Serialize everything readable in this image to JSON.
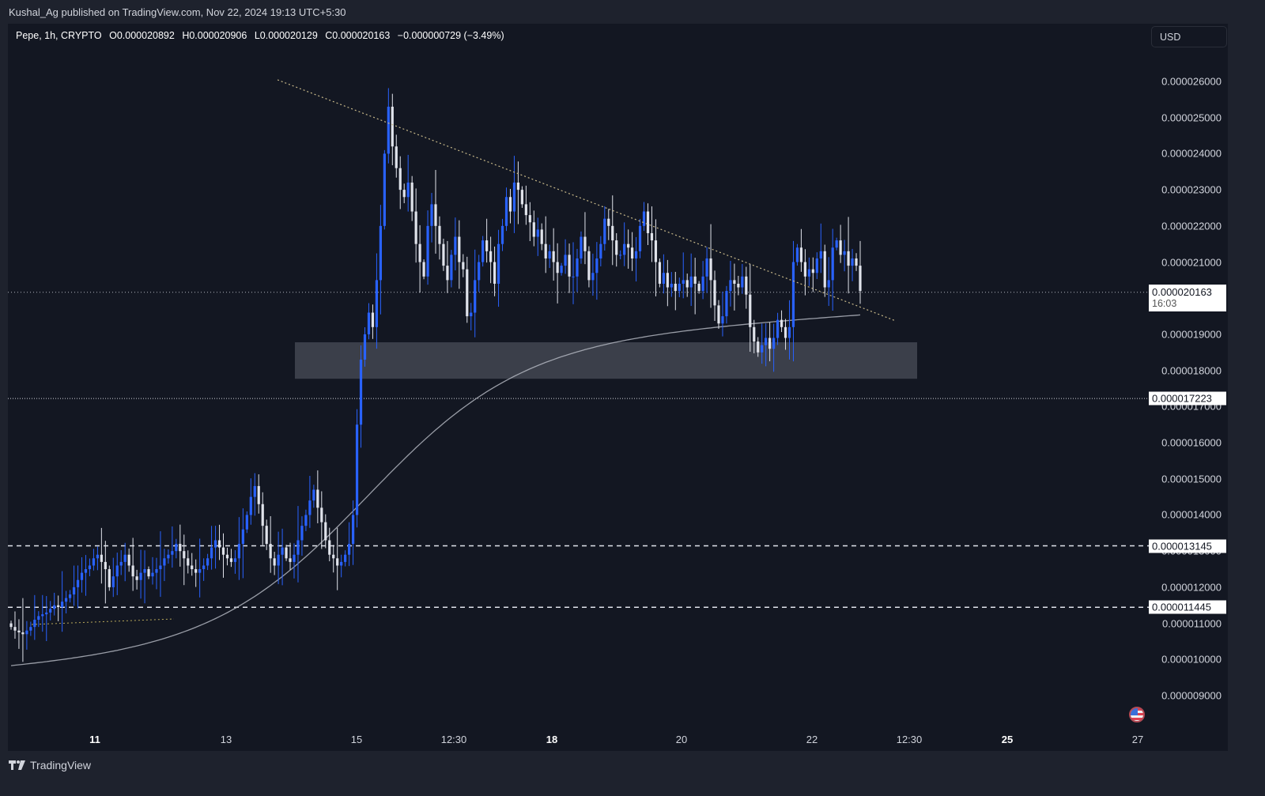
{
  "publish_bar": {
    "text": "Kushal_Ag published on TradingView.com, Nov 22, 2024 19:13 UTC+5:30"
  },
  "legend": {
    "symbol": "Pepe, 1h, CRYPTO",
    "open": "O0.000020892",
    "high": "H0.000020906",
    "low": "L0.000020129",
    "close": "C0.000020163",
    "change": "−0.000000729 (−3.49%)"
  },
  "currency_button": {
    "label": "USD"
  },
  "footer": {
    "brand": "TradingView"
  },
  "colors": {
    "background": "#131722",
    "frame": "#1e222d",
    "up_candle": "#2962ff",
    "down_candle": "#e0e3eb",
    "trendline": "#c8b98a",
    "ma_line": "#b2b5be",
    "zone": "#434651"
  },
  "chart_data": {
    "type": "candlestick",
    "title": "Pepe, 1h, CRYPTO",
    "xlabel": "",
    "ylabel": "USD",
    "ylim": [
      8.5e-06,
      2.72e-05
    ],
    "grid": false,
    "y_ticks": [
      "0.000026000",
      "0.000025000",
      "0.000024000",
      "0.000023000",
      "0.000022000",
      "0.000021000",
      "0.000019000",
      "0.000018000",
      "0.000017000",
      "0.000016000",
      "0.000015000",
      "0.000014000",
      "0.000013000",
      "0.000012000",
      "0.000011000",
      "0.000010000",
      "0.000009000"
    ],
    "x_ticks": [
      {
        "label": "11",
        "bold": true
      },
      {
        "label": "13",
        "bold": false
      },
      {
        "label": "15",
        "bold": false
      },
      {
        "label": "12:30",
        "bold": false
      },
      {
        "label": "18",
        "bold": true
      },
      {
        "label": "20",
        "bold": false
      },
      {
        "label": "22",
        "bold": false
      },
      {
        "label": "12:30",
        "bold": false
      },
      {
        "label": "25",
        "bold": true
      },
      {
        "label": "27",
        "bold": false
      }
    ],
    "price_tags": [
      {
        "value": "0.000020163",
        "sub": "16:03",
        "kind": "last_price"
      },
      {
        "value": "0.000017223",
        "kind": "horizontal_line_dotted"
      },
      {
        "value": "0.000013145",
        "kind": "horizontal_line_dashed"
      },
      {
        "value": "0.000011445",
        "kind": "horizontal_line_dashed"
      }
    ],
    "last_ohlc": {
      "open": 2.0892e-05,
      "high": 2.0906e-05,
      "low": 2.0129e-05,
      "close": 2.0163e-05,
      "change": -7.29e-07,
      "change_pct": -3.49
    },
    "price_path_e6": [
      10.9,
      10.8,
      10.75,
      10.7,
      10.8,
      10.9,
      11.1,
      11.2,
      11.25,
      11.3,
      11.4,
      11.5,
      11.45,
      11.6,
      11.7,
      11.8,
      12.0,
      12.2,
      12.4,
      12.5,
      12.6,
      12.8,
      12.9,
      12.7,
      12.5,
      12.0,
      12.3,
      12.6,
      12.7,
      12.9,
      12.6,
      12.3,
      12.2,
      12.4,
      12.5,
      12.3,
      12.4,
      12.5,
      12.6,
      12.8,
      12.9,
      13.0,
      13.2,
      13.0,
      12.8,
      12.6,
      12.5,
      12.4,
      12.5,
      12.6,
      12.8,
      13.1,
      13.3,
      13.1,
      12.9,
      12.8,
      12.7,
      12.8,
      13.2,
      13.6,
      14.0,
      14.5,
      14.8,
      14.3,
      13.7,
      13.2,
      12.8,
      12.6,
      12.9,
      13.1,
      12.8,
      12.7,
      12.9,
      13.3,
      13.7,
      14.0,
      14.4,
      14.7,
      14.2,
      13.8,
      13.3,
      12.9,
      12.8,
      12.6,
      12.7,
      12.9,
      13.2,
      14.0,
      16.5,
      18.3,
      19.0,
      19.6,
      19.2,
      20.5,
      22.0,
      24.0,
      25.3,
      24.2,
      23.6,
      23.0,
      22.8,
      23.2,
      22.4,
      21.5,
      21.0,
      20.6,
      22.0,
      22.6,
      22.0,
      21.5,
      20.9,
      20.5,
      21.2,
      21.7,
      21.0,
      20.8,
      19.5,
      19.6,
      20.5,
      21.0,
      21.6,
      21.3,
      21.0,
      20.4,
      21.5,
      22.0,
      22.8,
      22.4,
      23.2,
      23.0,
      22.6,
      22.3,
      22.1,
      21.7,
      21.9,
      21.5,
      21.1,
      21.3,
      21.0,
      20.7,
      20.9,
      21.2,
      20.6,
      20.6,
      21.1,
      21.7,
      21.3,
      20.5,
      20.7,
      21.1,
      21.5,
      22.2,
      22.0,
      21.6,
      21.2,
      21.2,
      21.5,
      21.4,
      21.1,
      21.3,
      22.0,
      22.4,
      21.8,
      21.6,
      21.0,
      20.4,
      20.7,
      20.3,
      20.4,
      20.2,
      20.4,
      20.5,
      20.3,
      20.6,
      20.4,
      20.2,
      20.6,
      21.1,
      20.5,
      19.8,
      19.3,
      19.5,
      20.2,
      20.5,
      20.4,
      20.3,
      20.6,
      20.1,
      19.2,
      18.8,
      18.5,
      18.7,
      18.9,
      18.6,
      18.9,
      19.4,
      19.2,
      18.9,
      19.2,
      21.0,
      21.4,
      21.0,
      20.6,
      20.8,
      20.7,
      21.1,
      21.3,
      20.3,
      20.5,
      21.4,
      21.6,
      21.2,
      21.3,
      20.9,
      21.1,
      20.9,
      20.2
    ],
    "moving_average": {
      "start_e6": 9.75,
      "end_e6": 19.55
    },
    "annotations": [
      {
        "type": "descending_trendline",
        "from": "peak ~0.0000261 (Nov 14)",
        "to": "~0.0000196 (Nov 23)"
      },
      {
        "type": "support_zone",
        "top": 1.88e-05,
        "bottom": 1.77e-05
      },
      {
        "type": "small_trendline",
        "note": "dotted line near 0.0000111 (Nov 10-12)"
      }
    ]
  }
}
